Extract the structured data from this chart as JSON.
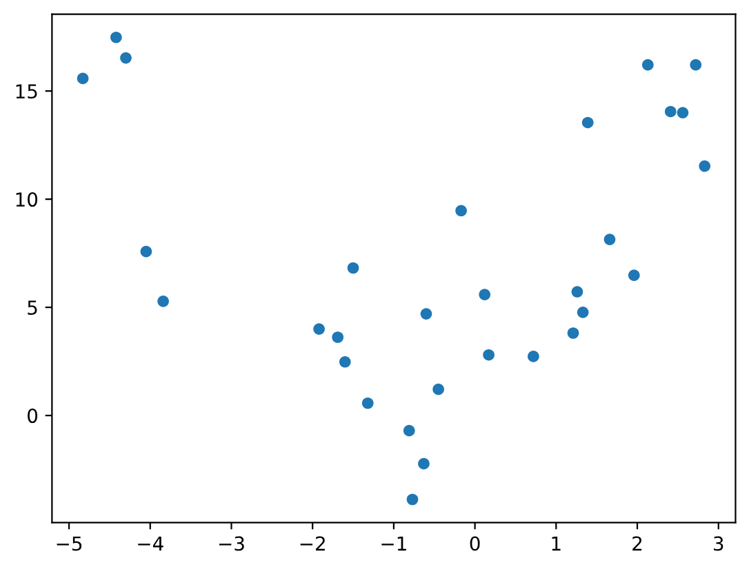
{
  "chart_data": {
    "type": "scatter",
    "x": [
      -4.83,
      -4.42,
      -4.3,
      -4.05,
      -1.5,
      2.13,
      2.72,
      2.41,
      2.56,
      1.39,
      2.83,
      -0.17,
      1.66,
      1.96,
      -3.84,
      -1.92,
      -1.69,
      -1.6,
      -1.32,
      0.12,
      1.26,
      -0.6,
      1.33,
      1.21,
      0.17,
      0.72,
      -0.45,
      -0.81,
      -0.63,
      -0.77
    ],
    "values": [
      15.58,
      17.48,
      16.53,
      7.58,
      6.82,
      16.21,
      16.21,
      14.05,
      14.0,
      13.54,
      11.53,
      9.47,
      8.14,
      6.48,
      5.28,
      4.0,
      3.62,
      2.48,
      0.57,
      5.59,
      5.72,
      4.7,
      4.77,
      3.81,
      2.8,
      2.73,
      1.21,
      -0.7,
      -2.23,
      -3.88
    ],
    "color": "#1f77b4",
    "xlim": [
      -5.21,
      3.21
    ],
    "ylim": [
      -4.95,
      18.55
    ],
    "xticks": [
      {
        "value": -5,
        "label": "−5"
      },
      {
        "value": -4,
        "label": "−4"
      },
      {
        "value": -3,
        "label": "−3"
      },
      {
        "value": -2,
        "label": "−2"
      },
      {
        "value": -1,
        "label": "−1"
      },
      0,
      1,
      2,
      3
    ],
    "yticks": [
      0,
      5,
      10,
      15
    ],
    "grid": false,
    "marker": "circle"
  }
}
